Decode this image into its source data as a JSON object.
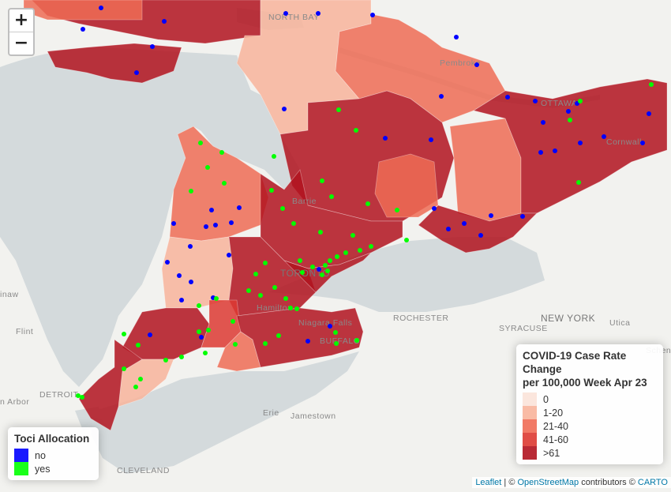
{
  "colors": {
    "water": "#d4dadc",
    "land": "#f2f2ef",
    "bin_0": "#fbe3d9",
    "bin_1_20": "#f8b49b",
    "bin_21_40": "#ef6c55",
    "bin_41_60": "#dd3a32",
    "bin_61": "#b1131f",
    "yes": "#00ff00",
    "no": "#0000ff"
  },
  "zoom": {
    "in": "+",
    "out": "−"
  },
  "case_legend": {
    "title_line1": "COVID-19 Case Rate Change",
    "title_line2": "per 100,000 Week Apr 23",
    "bins": [
      {
        "label": "0",
        "color": "#fbe3d9"
      },
      {
        "label": "1-20",
        "color": "#f8b49b"
      },
      {
        "label": "21-40",
        "color": "#ef6c55"
      },
      {
        "label": "41-60",
        "color": "#dd3a32"
      },
      {
        "label": ">61",
        "color": "#b1131f"
      }
    ]
  },
  "toci_legend": {
    "title": "Toci Allocation",
    "items": [
      {
        "label": "no",
        "color": "#0000ff"
      },
      {
        "label": "yes",
        "color": "#00ff00"
      }
    ]
  },
  "labels": {
    "north_bay": "NORTH BAY",
    "pembroke": "Pembroke",
    "ottawa": "OTTAWA",
    "cornwall": "Cornwall",
    "barrie": "Barrie",
    "toronto": "TORONTO",
    "hamilton": "Hamilton",
    "niagara_falls": "Niagara Falls",
    "buffalo": "BUFFALO",
    "rochester": "ROCHESTER",
    "syracuse": "SYRACUSE",
    "new_york": "NEW YORK",
    "utica": "Utica",
    "schenectady": "Schene",
    "flint": "Flint",
    "saginaw": "inaw",
    "detroit": "DETROIT",
    "ann_arbor": "n Arbor",
    "erie": "Erie",
    "jamestown": "Jamestown",
    "cleveland": "CLEVELAND"
  },
  "attribution": {
    "leaflet": "Leaflet",
    "sep": " | © ",
    "osm": "OpenStreetMap",
    "contrib": " contributors © ",
    "carto": "CARTO"
  }
}
